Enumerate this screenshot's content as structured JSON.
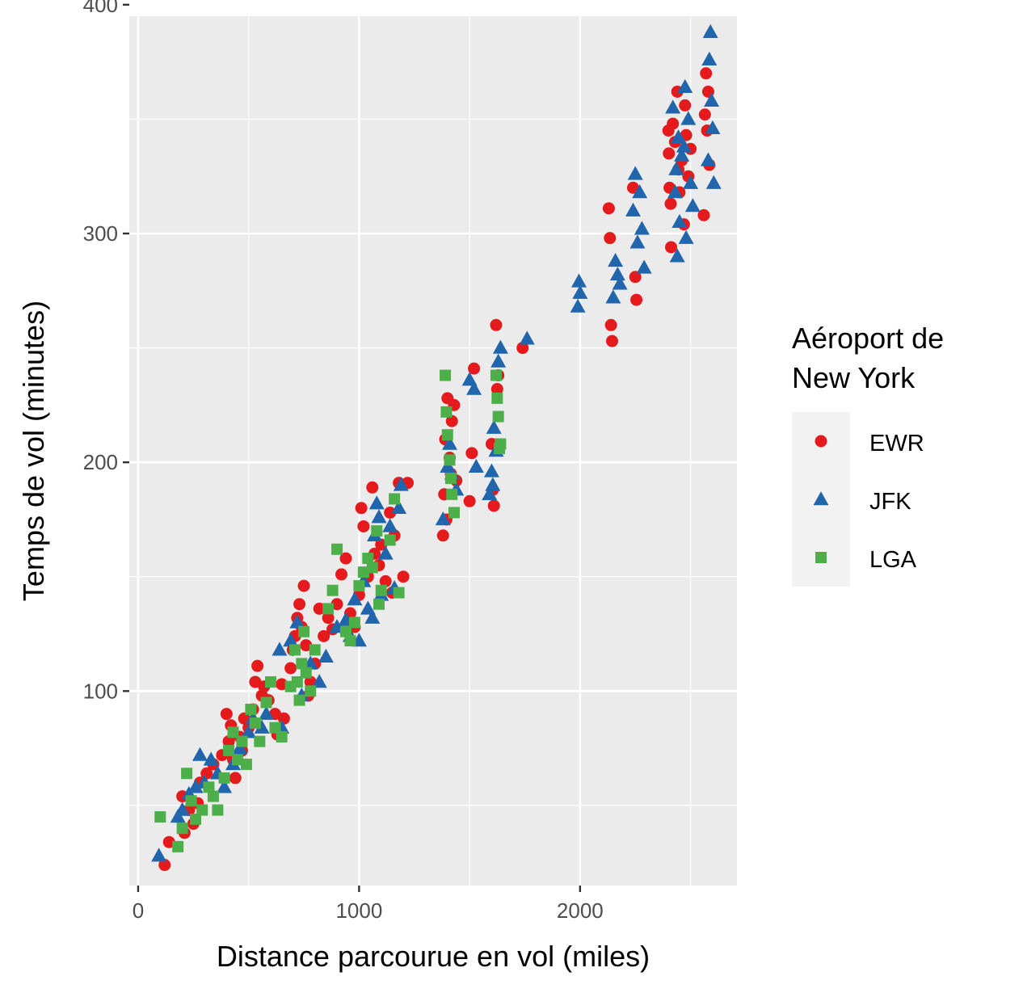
{
  "chart_data": {
    "type": "scatter",
    "title": "",
    "xlabel": "Distance parcourue en vol (miles)",
    "ylabel": "Temps de vol (minutes)",
    "xlim": [
      -40,
      2710
    ],
    "ylim": [
      15,
      395
    ],
    "x_ticks": [
      0,
      1000,
      2000
    ],
    "x_tick_labels": [
      "0",
      "1000",
      "2000"
    ],
    "y_ticks": [
      100,
      200,
      300,
      400
    ],
    "y_tick_labels": [
      "100",
      "200",
      "300",
      "400"
    ],
    "grid": true,
    "legend": {
      "title": "Aéroport de\nNew York",
      "title_lines": [
        "Aéroport de",
        "New York"
      ],
      "placement": "right",
      "entries": [
        "EWR",
        "JFK",
        "LGA"
      ]
    },
    "series": [
      {
        "name": "EWR",
        "shape": "circle",
        "color": "#E41A1C",
        "points": [
          [
            120,
            24
          ],
          [
            140,
            34
          ],
          [
            200,
            54
          ],
          [
            210,
            38
          ],
          [
            230,
            48
          ],
          [
            250,
            42
          ],
          [
            270,
            51
          ],
          [
            280,
            60
          ],
          [
            310,
            64
          ],
          [
            340,
            68
          ],
          [
            380,
            72
          ],
          [
            400,
            90
          ],
          [
            410,
            78
          ],
          [
            420,
            85
          ],
          [
            430,
            70
          ],
          [
            440,
            62
          ],
          [
            460,
            80
          ],
          [
            470,
            74
          ],
          [
            480,
            88
          ],
          [
            500,
            84
          ],
          [
            520,
            92
          ],
          [
            530,
            104
          ],
          [
            540,
            111
          ],
          [
            560,
            98
          ],
          [
            570,
            102
          ],
          [
            590,
            96
          ],
          [
            620,
            90
          ],
          [
            630,
            81
          ],
          [
            650,
            103
          ],
          [
            660,
            88
          ],
          [
            690,
            110
          ],
          [
            700,
            118
          ],
          [
            710,
            124
          ],
          [
            720,
            132
          ],
          [
            730,
            138
          ],
          [
            740,
            128
          ],
          [
            750,
            146
          ],
          [
            760,
            120
          ],
          [
            770,
            98
          ],
          [
            780,
            104
          ],
          [
            800,
            112
          ],
          [
            820,
            136
          ],
          [
            840,
            124
          ],
          [
            860,
            132
          ],
          [
            880,
            127
          ],
          [
            900,
            138
          ],
          [
            920,
            151
          ],
          [
            940,
            158
          ],
          [
            960,
            134
          ],
          [
            980,
            128
          ],
          [
            1000,
            142
          ],
          [
            1010,
            180
          ],
          [
            1020,
            172
          ],
          [
            1040,
            150
          ],
          [
            1060,
            189
          ],
          [
            1070,
            160
          ],
          [
            1090,
            155
          ],
          [
            1100,
            164
          ],
          [
            1120,
            148
          ],
          [
            1140,
            178
          ],
          [
            1150,
            143
          ],
          [
            1160,
            168
          ],
          [
            1180,
            191
          ],
          [
            1200,
            150
          ],
          [
            1220,
            191
          ],
          [
            1380,
            168
          ],
          [
            1385,
            186
          ],
          [
            1390,
            210
          ],
          [
            1395,
            175
          ],
          [
            1400,
            228
          ],
          [
            1410,
            202
          ],
          [
            1415,
            195
          ],
          [
            1420,
            218
          ],
          [
            1430,
            225
          ],
          [
            1440,
            192
          ],
          [
            1500,
            183
          ],
          [
            1510,
            204
          ],
          [
            1520,
            241
          ],
          [
            1600,
            208
          ],
          [
            1605,
            188
          ],
          [
            1610,
            181
          ],
          [
            1620,
            260
          ],
          [
            1625,
            232
          ],
          [
            1630,
            238
          ],
          [
            1740,
            250
          ],
          [
            2130,
            311
          ],
          [
            2135,
            298
          ],
          [
            2140,
            260
          ],
          [
            2145,
            253
          ],
          [
            2240,
            320
          ],
          [
            2250,
            281
          ],
          [
            2255,
            271
          ],
          [
            2400,
            345
          ],
          [
            2402,
            335
          ],
          [
            2405,
            320
          ],
          [
            2410,
            313
          ],
          [
            2412,
            294
          ],
          [
            2420,
            348
          ],
          [
            2430,
            340
          ],
          [
            2440,
            362
          ],
          [
            2445,
            328
          ],
          [
            2450,
            318
          ],
          [
            2460,
            332
          ],
          [
            2470,
            304
          ],
          [
            2475,
            356
          ],
          [
            2480,
            343
          ],
          [
            2490,
            325
          ],
          [
            2500,
            337
          ],
          [
            2560,
            308
          ],
          [
            2565,
            352
          ],
          [
            2570,
            370
          ],
          [
            2575,
            345
          ],
          [
            2580,
            362
          ],
          [
            2585,
            330
          ]
        ]
      },
      {
        "name": "JFK",
        "shape": "triangle",
        "color": "#2166AC",
        "points": [
          [
            94,
            28
          ],
          [
            180,
            45
          ],
          [
            200,
            48
          ],
          [
            230,
            55
          ],
          [
            260,
            58
          ],
          [
            280,
            72
          ],
          [
            300,
            60
          ],
          [
            330,
            70
          ],
          [
            360,
            64
          ],
          [
            390,
            58
          ],
          [
            430,
            68
          ],
          [
            460,
            75
          ],
          [
            500,
            82
          ],
          [
            520,
            88
          ],
          [
            560,
            84
          ],
          [
            580,
            90
          ],
          [
            640,
            118
          ],
          [
            650,
            84
          ],
          [
            690,
            122
          ],
          [
            720,
            130
          ],
          [
            740,
            98
          ],
          [
            780,
            112
          ],
          [
            820,
            104
          ],
          [
            850,
            115
          ],
          [
            900,
            128
          ],
          [
            940,
            131
          ],
          [
            960,
            124
          ],
          [
            980,
            140
          ],
          [
            1000,
            122
          ],
          [
            1020,
            148
          ],
          [
            1040,
            136
          ],
          [
            1060,
            132
          ],
          [
            1070,
            168
          ],
          [
            1080,
            182
          ],
          [
            1090,
            176
          ],
          [
            1100,
            142
          ],
          [
            1120,
            160
          ],
          [
            1140,
            172
          ],
          [
            1160,
            145
          ],
          [
            1180,
            180
          ],
          [
            1190,
            190
          ],
          [
            1380,
            175
          ],
          [
            1400,
            198
          ],
          [
            1410,
            208
          ],
          [
            1420,
            195
          ],
          [
            1440,
            188
          ],
          [
            1500,
            236
          ],
          [
            1520,
            232
          ],
          [
            1530,
            198
          ],
          [
            1590,
            186
          ],
          [
            1600,
            196
          ],
          [
            1605,
            190
          ],
          [
            1610,
            215
          ],
          [
            1620,
            205
          ],
          [
            1630,
            244
          ],
          [
            1640,
            250
          ],
          [
            1760,
            254
          ],
          [
            1990,
            268
          ],
          [
            1995,
            279
          ],
          [
            2000,
            274
          ],
          [
            2150,
            272
          ],
          [
            2160,
            288
          ],
          [
            2170,
            282
          ],
          [
            2180,
            278
          ],
          [
            2240,
            310
          ],
          [
            2250,
            326
          ],
          [
            2260,
            296
          ],
          [
            2270,
            318
          ],
          [
            2280,
            302
          ],
          [
            2290,
            285
          ],
          [
            2420,
            355
          ],
          [
            2430,
            318
          ],
          [
            2435,
            328
          ],
          [
            2440,
            290
          ],
          [
            2445,
            342
          ],
          [
            2450,
            305
          ],
          [
            2460,
            334
          ],
          [
            2470,
            338
          ],
          [
            2475,
            364
          ],
          [
            2480,
            298
          ],
          [
            2490,
            350
          ],
          [
            2500,
            322
          ],
          [
            2510,
            312
          ],
          [
            2580,
            332
          ],
          [
            2585,
            376
          ],
          [
            2590,
            388
          ],
          [
            2595,
            358
          ],
          [
            2600,
            346
          ],
          [
            2605,
            322
          ]
        ]
      },
      {
        "name": "LGA",
        "shape": "square",
        "color": "#4DAF4A",
        "points": [
          [
            100,
            45
          ],
          [
            180,
            32
          ],
          [
            200,
            40
          ],
          [
            220,
            64
          ],
          [
            240,
            52
          ],
          [
            260,
            44
          ],
          [
            290,
            48
          ],
          [
            320,
            58
          ],
          [
            340,
            54
          ],
          [
            360,
            48
          ],
          [
            390,
            62
          ],
          [
            410,
            74
          ],
          [
            430,
            82
          ],
          [
            450,
            70
          ],
          [
            470,
            78
          ],
          [
            490,
            68
          ],
          [
            510,
            92
          ],
          [
            530,
            86
          ],
          [
            550,
            78
          ],
          [
            580,
            95
          ],
          [
            600,
            104
          ],
          [
            620,
            84
          ],
          [
            650,
            80
          ],
          [
            690,
            102
          ],
          [
            710,
            118
          ],
          [
            720,
            104
          ],
          [
            730,
            96
          ],
          [
            740,
            112
          ],
          [
            750,
            126
          ],
          [
            760,
            108
          ],
          [
            780,
            100
          ],
          [
            800,
            118
          ],
          [
            860,
            136
          ],
          [
            880,
            144
          ],
          [
            900,
            162
          ],
          [
            940,
            126
          ],
          [
            960,
            122
          ],
          [
            980,
            130
          ],
          [
            1000,
            146
          ],
          [
            1020,
            152
          ],
          [
            1040,
            158
          ],
          [
            1060,
            154
          ],
          [
            1080,
            170
          ],
          [
            1090,
            138
          ],
          [
            1100,
            144
          ],
          [
            1140,
            166
          ],
          [
            1160,
            184
          ],
          [
            1180,
            143
          ],
          [
            1390,
            238
          ],
          [
            1395,
            222
          ],
          [
            1400,
            212
          ],
          [
            1410,
            201
          ],
          [
            1415,
            193
          ],
          [
            1420,
            186
          ],
          [
            1430,
            178
          ],
          [
            1620,
            238
          ],
          [
            1625,
            228
          ],
          [
            1630,
            220
          ],
          [
            1635,
            206
          ],
          [
            1640,
            208
          ]
        ]
      }
    ]
  }
}
